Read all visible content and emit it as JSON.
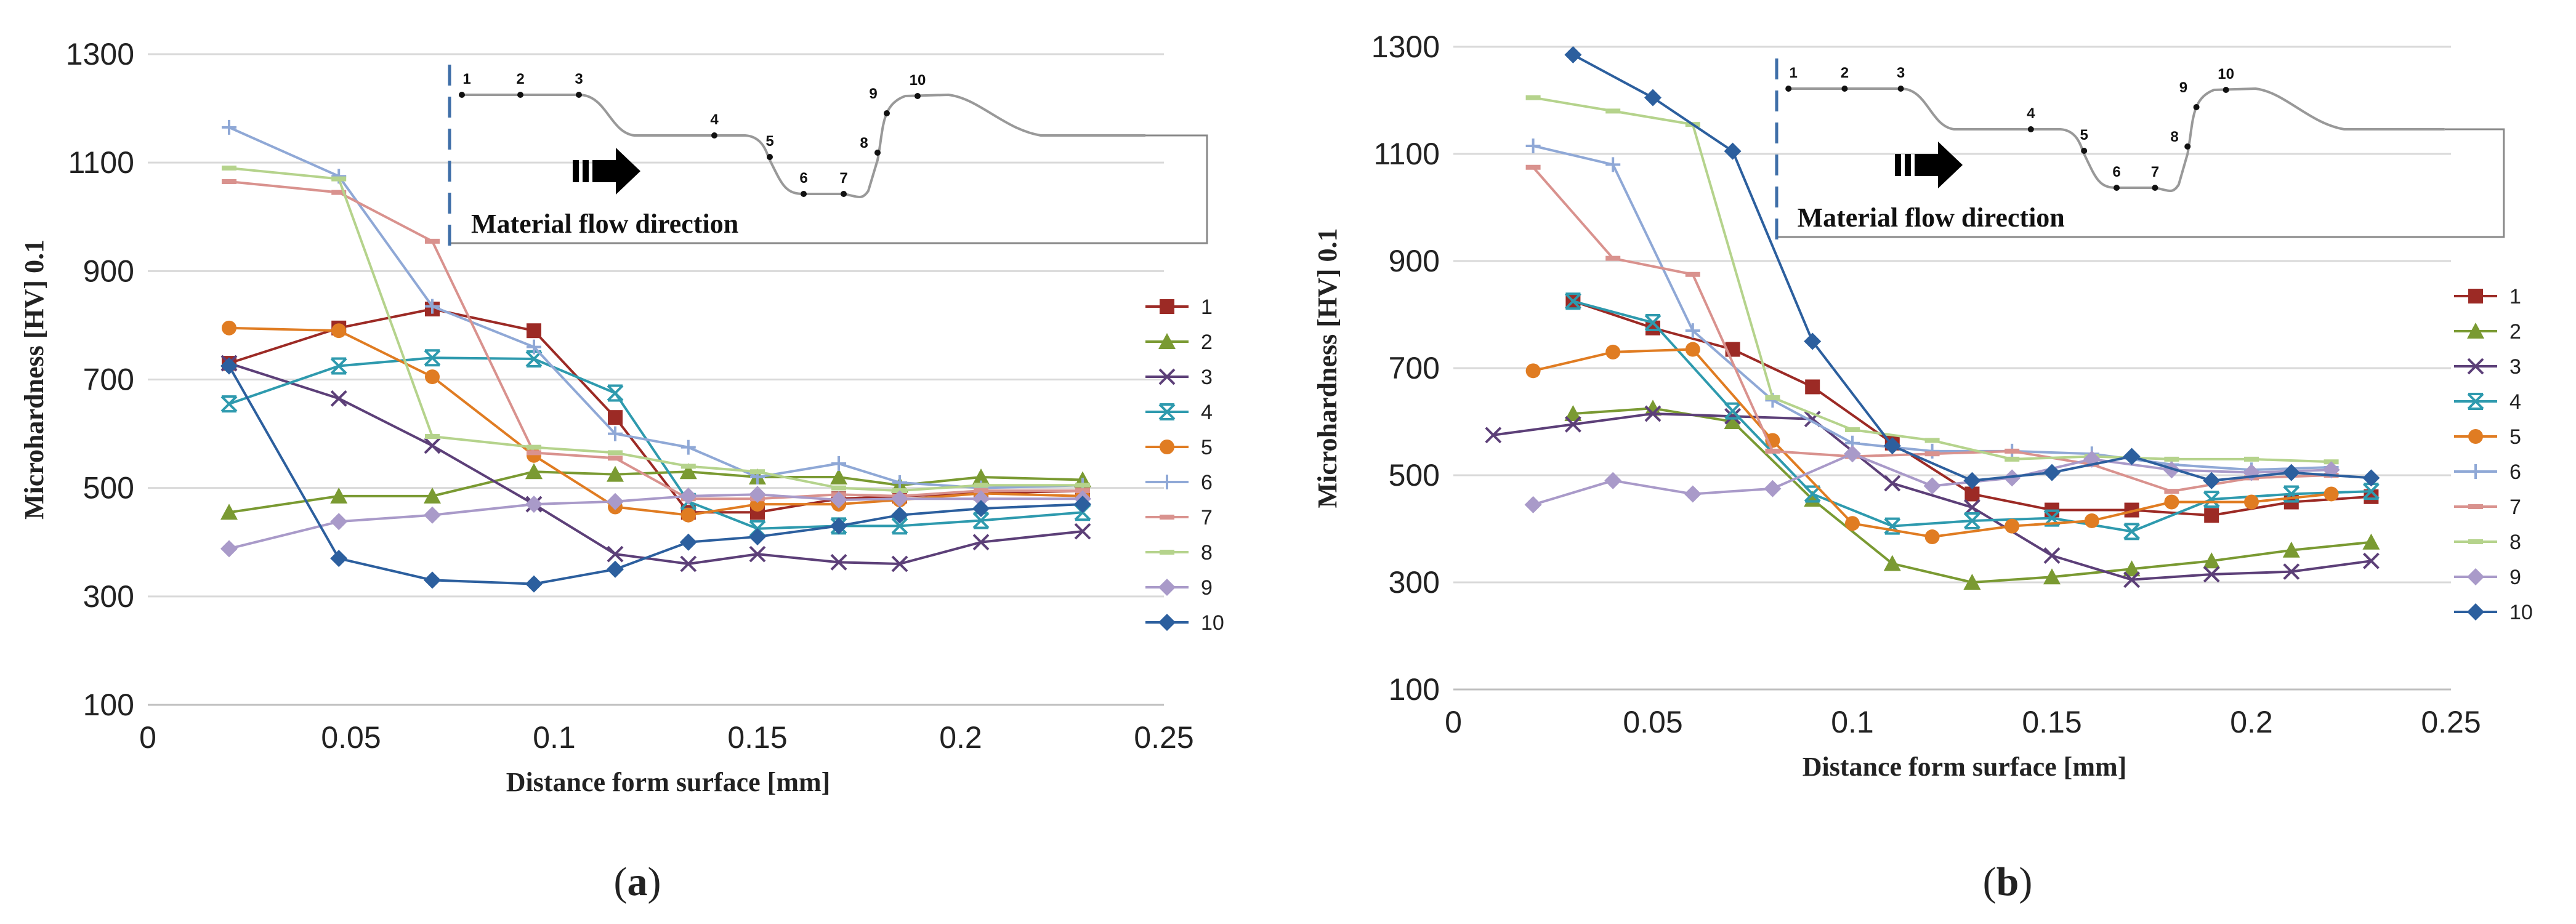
{
  "colors": {
    "s1": "#9C2A25",
    "s2": "#7A9A32",
    "s3": "#5C3F78",
    "s4": "#2E9AAE",
    "s5": "#E07C22",
    "s6": "#8FA8D6",
    "s7": "#D9928E",
    "s8": "#B5D38C",
    "s9": "#A99AC9",
    "s10": "#2C5F9E",
    "grid": "#D9D9D9",
    "axis": "#BFBFBF"
  },
  "inset": {
    "points": [
      "1",
      "2",
      "3",
      "4",
      "5",
      "6",
      "7",
      "8",
      "9",
      "10"
    ],
    "arrow_label": "Material flow direction"
  },
  "chart_data": [
    {
      "type": "line",
      "panel_label": "a",
      "xlabel": "Distance form surface [mm]",
      "ylabel": "Microhardness [HV] 0.1",
      "xlim": [
        0,
        0.25
      ],
      "ylim": [
        100,
        1300
      ],
      "xticks": [
        0,
        0.05,
        0.1,
        0.15,
        0.2,
        0.25
      ],
      "xtick_labels": [
        "0",
        "0.05",
        "0.1",
        "0.15",
        "0.2",
        "0.25"
      ],
      "yticks": [
        100,
        300,
        500,
        700,
        900,
        1100,
        1300
      ],
      "grid": true,
      "legend": "right",
      "series": [
        {
          "name": "1",
          "marker": "square",
          "x": [
            0.02,
            0.047,
            0.07,
            0.095,
            0.115,
            0.133,
            0.15,
            0.17,
            0.185,
            0.205,
            0.23
          ],
          "y": [
            730,
            795,
            830,
            790,
            630,
            455,
            455,
            480,
            485,
            490,
            495
          ]
        },
        {
          "name": "2",
          "marker": "triangle",
          "x": [
            0.02,
            0.047,
            0.07,
            0.095,
            0.115,
            0.133,
            0.15,
            0.17,
            0.185,
            0.205,
            0.23
          ],
          "y": [
            455,
            485,
            485,
            530,
            525,
            530,
            520,
            520,
            505,
            520,
            515
          ]
        },
        {
          "name": "3",
          "marker": "x",
          "x": [
            0.02,
            0.047,
            0.07,
            0.095,
            0.115,
            0.133,
            0.15,
            0.17,
            0.185,
            0.205,
            0.23
          ],
          "y": [
            730,
            665,
            578,
            470,
            378,
            360,
            378,
            363,
            360,
            400,
            420
          ]
        },
        {
          "name": "4",
          "marker": "xbar",
          "x": [
            0.02,
            0.047,
            0.07,
            0.095,
            0.115,
            0.133,
            0.15,
            0.17,
            0.185,
            0.205,
            0.23
          ],
          "y": [
            655,
            725,
            740,
            738,
            675,
            475,
            425,
            430,
            430,
            440,
            455
          ]
        },
        {
          "name": "5",
          "marker": "circle",
          "x": [
            0.02,
            0.047,
            0.07,
            0.095,
            0.115,
            0.133,
            0.15,
            0.17,
            0.185,
            0.205,
            0.23
          ],
          "y": [
            795,
            790,
            705,
            560,
            465,
            450,
            470,
            470,
            478,
            490,
            485
          ]
        },
        {
          "name": "6",
          "marker": "plus",
          "x": [
            0.02,
            0.047,
            0.07,
            0.095,
            0.115,
            0.133,
            0.15,
            0.17,
            0.185,
            0.205,
            0.23
          ],
          "y": [
            1165,
            1075,
            835,
            760,
            600,
            575,
            520,
            545,
            510,
            500,
            505
          ]
        },
        {
          "name": "7",
          "marker": "dash",
          "x": [
            0.02,
            0.047,
            0.07,
            0.095,
            0.115,
            0.133,
            0.15,
            0.17,
            0.185,
            0.205,
            0.23
          ],
          "y": [
            1065,
            1045,
            955,
            565,
            555,
            480,
            480,
            488,
            485,
            495,
            495
          ]
        },
        {
          "name": "8",
          "marker": "dash",
          "x": [
            0.02,
            0.047,
            0.07,
            0.095,
            0.115,
            0.133,
            0.15,
            0.17,
            0.185,
            0.205,
            0.23
          ],
          "y": [
            1090,
            1070,
            595,
            575,
            565,
            540,
            530,
            500,
            495,
            505,
            505
          ]
        },
        {
          "name": "9",
          "marker": "diamond",
          "x": [
            0.02,
            0.047,
            0.07,
            0.095,
            0.115,
            0.133,
            0.15,
            0.17,
            0.185,
            0.205,
            0.23
          ],
          "y": [
            388,
            438,
            450,
            470,
            475,
            485,
            488,
            478,
            480,
            480,
            480
          ]
        },
        {
          "name": "10",
          "marker": "diamond",
          "x": [
            0.02,
            0.047,
            0.07,
            0.095,
            0.115,
            0.133,
            0.15,
            0.17,
            0.185,
            0.205,
            0.23
          ],
          "y": [
            725,
            370,
            330,
            323,
            350,
            400,
            410,
            430,
            450,
            462,
            470
          ]
        }
      ]
    },
    {
      "type": "line",
      "panel_label": "b",
      "xlabel": "Distance form surface [mm]",
      "ylabel": "Microhardness [HV] 0.1",
      "xlim": [
        0,
        0.25
      ],
      "ylim": [
        100,
        1300
      ],
      "xticks": [
        0,
        0.05,
        0.1,
        0.15,
        0.2,
        0.25
      ],
      "xtick_labels": [
        "0",
        "0.05",
        "0.1",
        "0.15",
        "0.2",
        "0.25"
      ],
      "yticks": [
        100,
        300,
        500,
        700,
        900,
        1100,
        1300
      ],
      "grid": true,
      "legend": "right",
      "series": [
        {
          "name": "1",
          "marker": "square",
          "x": [
            0.03,
            0.05,
            0.07,
            0.09,
            0.11,
            0.13,
            0.15,
            0.17,
            0.19,
            0.21,
            0.23
          ],
          "y": [
            825,
            775,
            735,
            665,
            560,
            465,
            435,
            435,
            425,
            450,
            460
          ]
        },
        {
          "name": "2",
          "marker": "triangle",
          "x": [
            0.03,
            0.05,
            0.07,
            0.09,
            0.11,
            0.13,
            0.15,
            0.17,
            0.19,
            0.21,
            0.23
          ],
          "y": [
            615,
            625,
            600,
            455,
            335,
            300,
            310,
            325,
            340,
            360,
            375
          ]
        },
        {
          "name": "3",
          "marker": "x",
          "x": [
            0.01,
            0.03,
            0.05,
            0.07,
            0.09,
            0.11,
            0.13,
            0.15,
            0.17,
            0.19,
            0.21,
            0.23
          ],
          "y": [
            575,
            595,
            615,
            610,
            605,
            485,
            440,
            350,
            305,
            315,
            320,
            340
          ]
        },
        {
          "name": "4",
          "marker": "xbar",
          "x": [
            0.03,
            0.05,
            0.07,
            0.09,
            0.11,
            0.13,
            0.15,
            0.17,
            0.19,
            0.21,
            0.23
          ],
          "y": [
            825,
            785,
            620,
            465,
            405,
            415,
            420,
            395,
            455,
            465,
            470
          ]
        },
        {
          "name": "5",
          "marker": "circle",
          "x": [
            0.02,
            0.04,
            0.06,
            0.08,
            0.1,
            0.12,
            0.14,
            0.16,
            0.18,
            0.2,
            0.22
          ],
          "y": [
            695,
            730,
            735,
            565,
            410,
            385,
            405,
            415,
            450,
            450,
            465
          ]
        },
        {
          "name": "6",
          "marker": "plus",
          "x": [
            0.02,
            0.04,
            0.06,
            0.08,
            0.1,
            0.12,
            0.14,
            0.16,
            0.18,
            0.2,
            0.22
          ],
          "y": [
            1115,
            1080,
            770,
            640,
            560,
            545,
            545,
            540,
            520,
            510,
            515
          ]
        },
        {
          "name": "7",
          "marker": "dash",
          "x": [
            0.02,
            0.04,
            0.06,
            0.08,
            0.1,
            0.12,
            0.14,
            0.16,
            0.18,
            0.2,
            0.22
          ],
          "y": [
            1075,
            905,
            875,
            545,
            535,
            540,
            545,
            520,
            470,
            495,
            500
          ]
        },
        {
          "name": "8",
          "marker": "dash",
          "x": [
            0.02,
            0.04,
            0.06,
            0.08,
            0.1,
            0.12,
            0.14,
            0.16,
            0.18,
            0.2,
            0.22
          ],
          "y": [
            1205,
            1180,
            1155,
            645,
            585,
            565,
            530,
            535,
            530,
            530,
            525
          ]
        },
        {
          "name": "9",
          "marker": "diamond",
          "x": [
            0.02,
            0.04,
            0.06,
            0.08,
            0.1,
            0.12,
            0.14,
            0.16,
            0.18,
            0.2,
            0.22
          ],
          "y": [
            445,
            490,
            465,
            475,
            540,
            480,
            495,
            530,
            510,
            505,
            510
          ]
        },
        {
          "name": "10",
          "marker": "diamond",
          "x": [
            0.03,
            0.05,
            0.07,
            0.09,
            0.11,
            0.13,
            0.15,
            0.17,
            0.19,
            0.21,
            0.23
          ],
          "y": [
            1285,
            1205,
            1105,
            750,
            555,
            490,
            505,
            535,
            490,
            505,
            495
          ]
        }
      ]
    }
  ]
}
